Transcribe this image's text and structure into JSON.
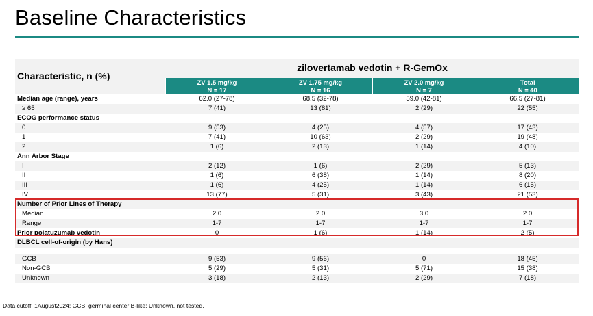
{
  "title": "Baseline Characteristics",
  "colors": {
    "accent": "#1b8a83",
    "highlight_border": "#d62a2a",
    "shade": "#f2f2f2"
  },
  "table": {
    "characteristic_header": "Characteristic, n (%)",
    "group_header": "zilovertamab vedotin + R-GemOx",
    "arms": [
      {
        "dose": "ZV 1.5 mg/kg",
        "n": "N = 17"
      },
      {
        "dose": "ZV 1.75 mg/kg",
        "n": "N = 16"
      },
      {
        "dose": "ZV 2.0 mg/kg",
        "n": "N = 7"
      },
      {
        "dose": "Total",
        "n": "N = 40"
      }
    ],
    "rows": [
      {
        "label": "Median age (range), years",
        "values": [
          "62.0 (27-78)",
          "68.5 (32-78)",
          "59.0 (42-81)",
          "66.5 (27-81)"
        ]
      },
      {
        "label": "≥ 65",
        "values": [
          "7 (41)",
          "13 (81)",
          "2 (29)",
          "22 (55)"
        ]
      },
      {
        "label": "ECOG performance status",
        "values": [
          "",
          "",
          "",
          ""
        ]
      },
      {
        "label": "0",
        "values": [
          "9 (53)",
          "4 (25)",
          "4 (57)",
          "17 (43)"
        ]
      },
      {
        "label": "1",
        "values": [
          "7 (41)",
          "10 (63)",
          "2 (29)",
          "19 (48)"
        ]
      },
      {
        "label": "2",
        "values": [
          "1 (6)",
          "2 (13)",
          "1 (14)",
          "4 (10)"
        ]
      },
      {
        "label": "Ann Arbor Stage",
        "values": [
          "",
          "",
          "",
          ""
        ]
      },
      {
        "label": "I",
        "values": [
          "2 (12)",
          "1 (6)",
          "2 (29)",
          "5 (13)"
        ]
      },
      {
        "label": "II",
        "values": [
          "1 (6)",
          "6 (38)",
          "1 (14)",
          "8 (20)"
        ]
      },
      {
        "label": "III",
        "values": [
          "1 (6)",
          "4 (25)",
          "1 (14)",
          "6 (15)"
        ]
      },
      {
        "label": "IV",
        "values": [
          "13 (77)",
          "5 (31)",
          "3 (43)",
          "21 (53)"
        ]
      },
      {
        "label": "Number of Prior Lines of Therapy",
        "values": [
          "",
          "",
          "",
          ""
        ]
      },
      {
        "label": "Median",
        "values": [
          "2.0",
          "2.0",
          "3.0",
          "2.0"
        ]
      },
      {
        "label": "Range",
        "values": [
          "1-7",
          "1-7",
          "1-7",
          "1-7"
        ]
      },
      {
        "label": "Prior polatuzumab vedotin",
        "values": [
          "0",
          "1 (6)",
          "1 (14)",
          "2 (5)"
        ]
      },
      {
        "label": "DLBCL cell-of-origin (by Hans)",
        "values": [
          "",
          "",
          "",
          ""
        ]
      },
      {
        "label": "",
        "values": [
          "",
          "",
          "",
          ""
        ]
      },
      {
        "label": "GCB",
        "values": [
          "9 (53)",
          "9 (56)",
          "0",
          "18 (45)"
        ]
      },
      {
        "label": "Non-GCB",
        "values": [
          "5 (29)",
          "5 (31)",
          "5 (71)",
          "15 (38)"
        ]
      },
      {
        "label": "Unknown",
        "values": [
          "3 (18)",
          "2 (13)",
          "2 (29)",
          "7 (18)"
        ]
      }
    ]
  },
  "footnote": "Data cutoff: 1August2024; GCB, germinal center B-like; Unknown, not tested."
}
